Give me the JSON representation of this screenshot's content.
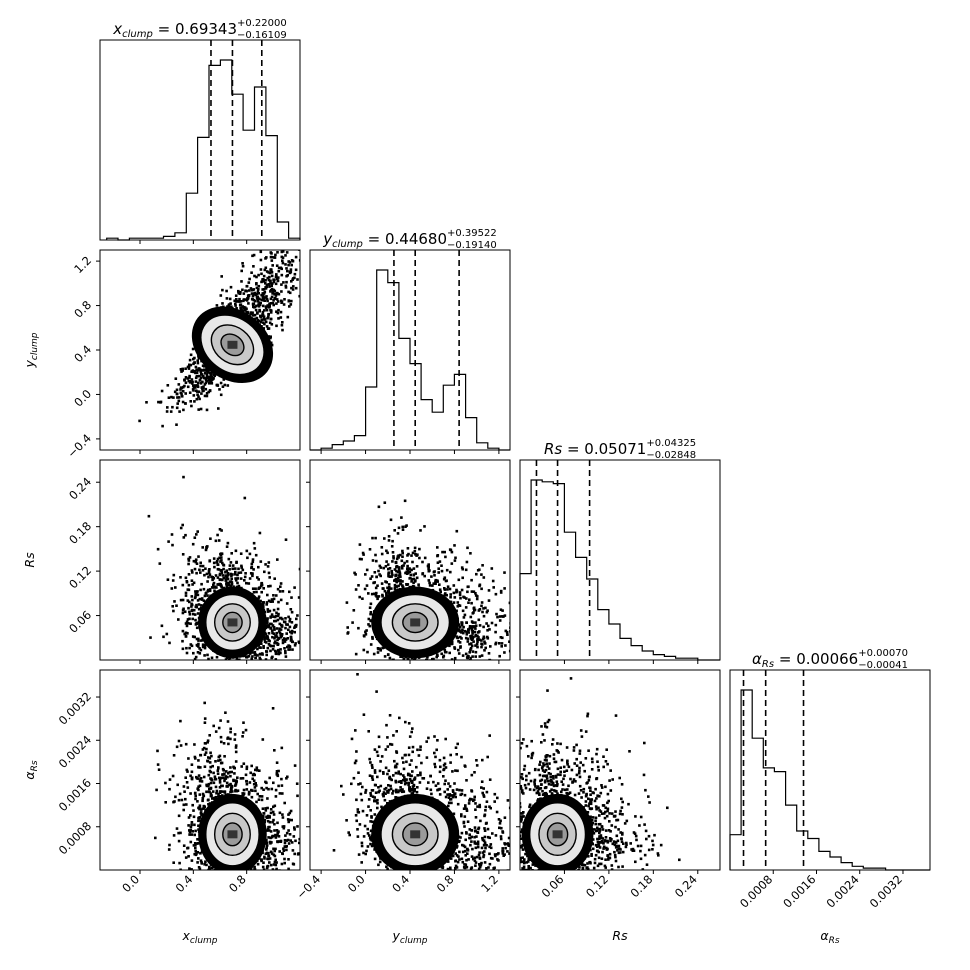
{
  "chart_data": {
    "type": "corner",
    "params": [
      {
        "key": "x",
        "label": {
          "base": "x",
          "sub": "clump"
        },
        "title": {
          "median": "0.69343",
          "plus": "+0.22000",
          "minus": "−0.16109"
        },
        "range": [
          -0.3,
          1.2
        ],
        "ticks": [
          "0.0",
          "0.4",
          "0.8"
        ],
        "quantiles": [
          0.53234,
          0.69343,
          0.91343
        ],
        "hist": [
          0.01,
          0.0,
          0.01,
          0.01,
          0.01,
          0.02,
          0.04,
          0.26,
          0.57,
          0.97,
          1.0,
          0.81,
          0.61,
          0.85,
          0.58,
          0.1,
          0.01
        ],
        "hist_range": [
          -0.25,
          1.2
        ]
      },
      {
        "key": "y",
        "label": {
          "base": "y",
          "sub": "clump"
        },
        "title": {
          "median": "0.44680",
          "plus": "+0.39522",
          "minus": "−0.19140"
        },
        "range": [
          -0.5,
          1.3
        ],
        "ticks": [
          "−0.4",
          "0.0",
          "0.4",
          "0.8",
          "1.2"
        ],
        "quantiles": [
          0.2554,
          0.4468,
          0.84202
        ],
        "hist": [
          0.0,
          0.01,
          0.03,
          0.05,
          0.08,
          0.35,
          1.0,
          0.93,
          0.62,
          0.48,
          0.28,
          0.21,
          0.36,
          0.42,
          0.18,
          0.04,
          0.01,
          0.0
        ],
        "hist_range": [
          -0.5,
          1.3
        ]
      },
      {
        "key": "rs",
        "label": {
          "base": "Rs",
          "sub": ""
        },
        "title": {
          "median": "0.05071",
          "plus": "+0.04325",
          "minus": "−0.02848"
        },
        "range": [
          0.0,
          0.27
        ],
        "ticks": [
          "0.06",
          "0.12",
          "0.18",
          "0.24"
        ],
        "quantiles": [
          0.02223,
          0.05071,
          0.09396
        ],
        "hist": [
          0.48,
          1.0,
          0.99,
          0.98,
          0.71,
          0.57,
          0.45,
          0.28,
          0.2,
          0.12,
          0.08,
          0.05,
          0.03,
          0.02,
          0.01,
          0.01,
          0.0,
          0.0
        ],
        "hist_range": [
          0.0,
          0.27
        ]
      },
      {
        "key": "a",
        "label": {
          "base": "α",
          "sub": "Rs"
        },
        "title": {
          "median": "0.00066",
          "plus": "+0.00070",
          "minus": "−0.00041"
        },
        "range": [
          0.0,
          0.0037
        ],
        "ticks": [
          "0.0008",
          "0.0016",
          "0.0024",
          "0.0032"
        ],
        "quantiles": [
          0.00025,
          0.00066,
          0.00136
        ],
        "hist": [
          0.19,
          0.97,
          0.71,
          0.55,
          0.53,
          0.35,
          0.21,
          0.17,
          0.1,
          0.07,
          0.04,
          0.02,
          0.01,
          0.01,
          0.0,
          0.0,
          0.0,
          0.0
        ],
        "hist_range": [
          0.0,
          0.0037
        ]
      }
    ]
  }
}
